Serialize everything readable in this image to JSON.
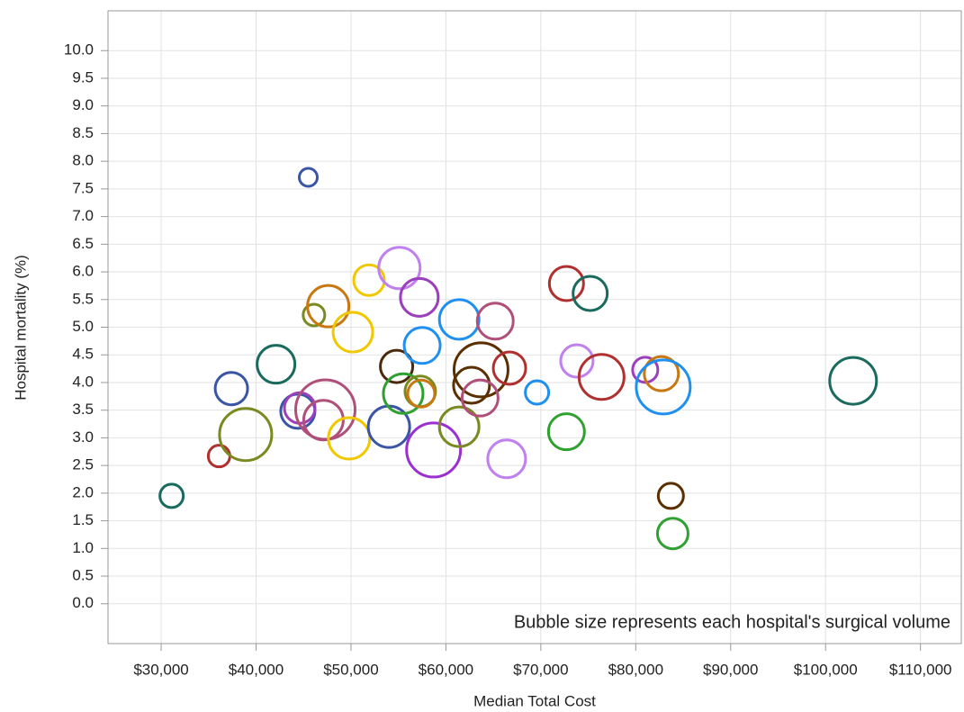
{
  "chart_data": {
    "type": "bubble",
    "x_label": "Median Total Cost",
    "y_label": "Hospital mortality (%)",
    "annotation": "Bubble size represents each hospital's surgical volume",
    "xlim": [
      24400,
      114300
    ],
    "ylim": [
      -0.72,
      10.72
    ],
    "xticks": [
      {
        "value": 30000,
        "label": "$30,000"
      },
      {
        "value": 40000,
        "label": "$40,000"
      },
      {
        "value": 50000,
        "label": "$50,000"
      },
      {
        "value": 60000,
        "label": "$60,000"
      },
      {
        "value": 70000,
        "label": "$70,000"
      },
      {
        "value": 80000,
        "label": "$80,000"
      },
      {
        "value": 90000,
        "label": "$90,000"
      },
      {
        "value": 100000,
        "label": "$100,000"
      },
      {
        "value": 110000,
        "label": "$110,000"
      }
    ],
    "yticks": [
      {
        "value": 0,
        "label": "0.0"
      },
      0.5,
      {
        "value": 1,
        "label": "1.0"
      },
      1.5,
      {
        "value": 2,
        "label": "2.0"
      },
      2.5,
      {
        "value": 3,
        "label": "3.0"
      },
      3.5,
      {
        "value": 4,
        "label": "4.0"
      },
      4.5,
      {
        "value": 5,
        "label": "5.0"
      },
      5.5,
      {
        "value": 6,
        "label": "6.0"
      },
      6.5,
      {
        "value": 7,
        "label": "7.0"
      },
      7.5,
      {
        "value": 8,
        "label": "8.0"
      },
      8.5,
      {
        "value": 9,
        "label": "9.0"
      },
      9.5,
      {
        "value": 10,
        "label": "10.0"
      }
    ],
    "grid": true,
    "x": [
      31100,
      36100,
      37400,
      38900,
      42100,
      44400,
      44600,
      45500,
      46100,
      47300,
      47100,
      47600,
      50200,
      49800,
      51900,
      54000,
      55100,
      54800,
      55500,
      57200,
      57500,
      57300,
      57400,
      58700,
      61400,
      61400,
      63700,
      62700,
      63600,
      65200,
      66700,
      66400,
      69600,
      72700,
      72700,
      73800,
      75200,
      76400,
      81000,
      82700,
      82900,
      83700,
      83900,
      102900
    ],
    "values": [
      1.95,
      2.67,
      3.89,
      3.06,
      4.33,
      3.48,
      3.54,
      7.71,
      5.22,
      3.51,
      3.32,
      5.38,
      4.91,
      2.99,
      5.85,
      3.2,
      6.07,
      4.29,
      3.8,
      5.54,
      4.67,
      3.84,
      3.8,
      2.78,
      5.14,
      3.2,
      4.23,
      3.95,
      3.72,
      5.11,
      4.26,
      2.62,
      3.82,
      3.11,
      5.79,
      4.39,
      5.61,
      4.1,
      4.23,
      4.16,
      3.92,
      1.95,
      1.27,
      4.03
    ],
    "sizes": [
      169,
      144,
      324,
      841,
      441,
      361,
      289,
      100,
      144,
      1089,
      484,
      529,
      484,
      529,
      289,
      529,
      529,
      324,
      484,
      441,
      400,
      289,
      225,
      900,
      484,
      484,
      900,
      400,
      400,
      400,
      324,
      441,
      169,
      400,
      361,
      324,
      361,
      625,
      196,
      361,
      900,
      196,
      289,
      676
    ],
    "colors": [
      "#1a6b5e",
      "#b03030",
      "#3a55a5",
      "#7a8a20",
      "#1a6b5e",
      "#3a55a5",
      "#9b3fbd",
      "#3a55a5",
      "#7a8a20",
      "#b0507a",
      "#b0507a",
      "#c87810",
      "#f0c800",
      "#f0c800",
      "#f0c800",
      "#3a55a5",
      "#c080f0",
      "#4a2a0a",
      "#30a030",
      "#9b3fbd",
      "#2090f0",
      "#7a8a20",
      "#c87810",
      "#9b30d0",
      "#2090f0",
      "#7a8a20",
      "#5a3000",
      "#5a3000",
      "#b0507a",
      "#b0507a",
      "#b03030",
      "#c080f0",
      "#2090f0",
      "#30a030",
      "#b03030",
      "#c080f0",
      "#1a6b5e",
      "#b03030",
      "#9b3fbd",
      "#c87810",
      "#2090f0",
      "#5a3000",
      "#30a030",
      "#1a6b5e"
    ]
  }
}
